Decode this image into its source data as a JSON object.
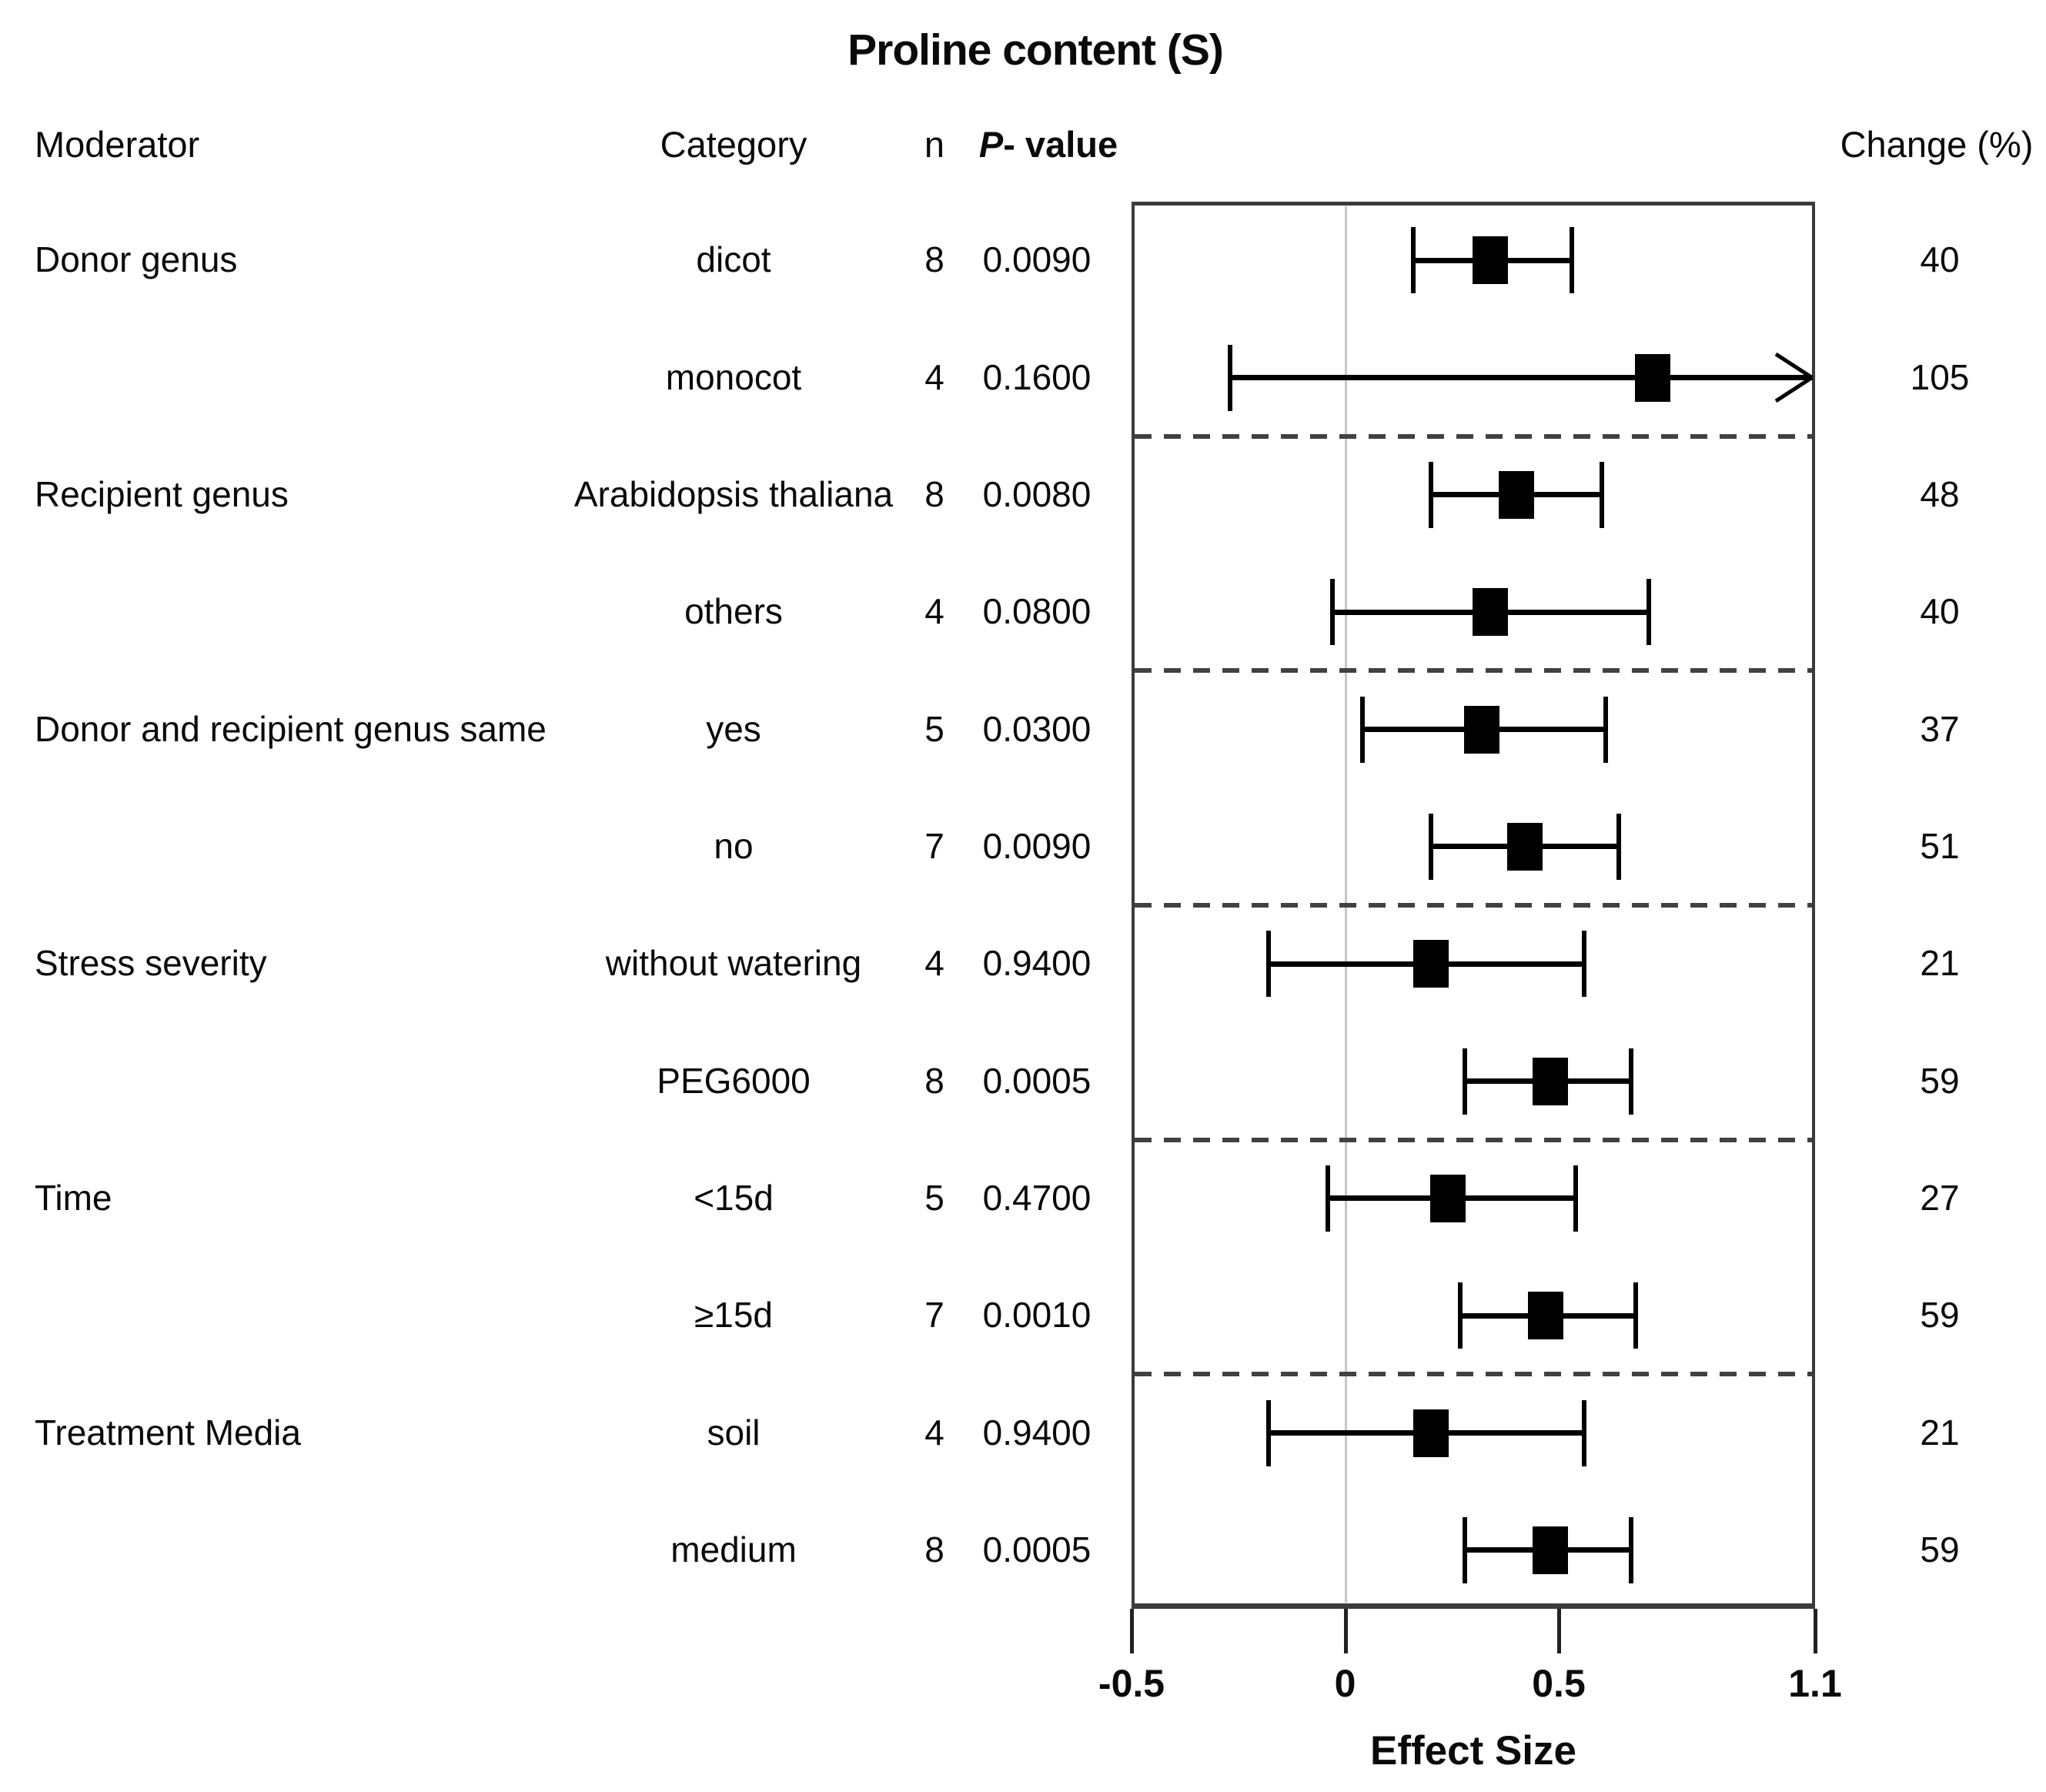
{
  "title": "Proline content (S)",
  "table": {
    "headers": {
      "moderator": "Moderator",
      "category": "Category",
      "n": "n",
      "p_value_italic": "P",
      "p_value_rest": "- value",
      "change": "Change (%)"
    }
  },
  "axis": {
    "label": "Effect Size",
    "ticks": [
      {
        "v": -0.5,
        "label": "-0.5"
      },
      {
        "v": 0,
        "label": "0"
      },
      {
        "v": 0.5,
        "label": "0.5"
      },
      {
        "v": 1.1,
        "label": "1.1"
      }
    ]
  },
  "colors": {
    "background": "#ffffff",
    "text": "#0a0a0a",
    "marker": "#000000",
    "plot_border": "#3b3b3b",
    "zero_line": "#c6c6c6",
    "separator": "#414141"
  },
  "chart_data": {
    "type": "scatter",
    "variant": "forest_plot",
    "title": "Proline content (S)",
    "xlabel": "Effect Size",
    "xlim": [
      -0.5,
      1.1
    ],
    "xticks": [
      -0.5,
      0,
      0.5,
      1.1
    ],
    "reference_line_x": 0,
    "grid": false,
    "separators_after_row_indexes": [
      1,
      3,
      5,
      7,
      9
    ],
    "rows": [
      {
        "moderator": "Donor genus",
        "category": "dicot",
        "n": 8,
        "p_value": "0.0090",
        "effect": 0.34,
        "ci_low": 0.16,
        "ci_high": 0.53,
        "ci_high_clipped": false,
        "change_pct": 40
      },
      {
        "moderator": "",
        "category": "monocot",
        "n": 4,
        "p_value": "0.1600",
        "effect": 0.72,
        "ci_low": -0.27,
        "ci_high": 1.1,
        "ci_high_clipped": true,
        "change_pct": 105
      },
      {
        "moderator": "Recipient genus",
        "category": "Arabidopsis thaliana",
        "n": 8,
        "p_value": "0.0080",
        "effect": 0.4,
        "ci_low": 0.2,
        "ci_high": 0.6,
        "ci_high_clipped": false,
        "change_pct": 48
      },
      {
        "moderator": "",
        "category": "others",
        "n": 4,
        "p_value": "0.0800",
        "effect": 0.34,
        "ci_low": -0.03,
        "ci_high": 0.71,
        "ci_high_clipped": false,
        "change_pct": 40
      },
      {
        "moderator": "Donor and recipient genus same",
        "category": "yes",
        "n": 5,
        "p_value": "0.0300",
        "effect": 0.32,
        "ci_low": 0.04,
        "ci_high": 0.61,
        "ci_high_clipped": false,
        "change_pct": 37
      },
      {
        "moderator": "",
        "category": "no",
        "n": 7,
        "p_value": "0.0090",
        "effect": 0.42,
        "ci_low": 0.2,
        "ci_high": 0.64,
        "ci_high_clipped": false,
        "change_pct": 51
      },
      {
        "moderator": "Stress severity",
        "category": "without watering",
        "n": 4,
        "p_value": "0.9400",
        "effect": 0.2,
        "ci_low": -0.18,
        "ci_high": 0.56,
        "ci_high_clipped": false,
        "change_pct": 21
      },
      {
        "moderator": "",
        "category": "PEG6000",
        "n": 8,
        "p_value": "0.0005",
        "effect": 0.48,
        "ci_low": 0.28,
        "ci_high": 0.67,
        "ci_high_clipped": false,
        "change_pct": 59
      },
      {
        "moderator": "Time",
        "category": "<15d",
        "n": 5,
        "p_value": "0.4700",
        "effect": 0.24,
        "ci_low": -0.04,
        "ci_high": 0.54,
        "ci_high_clipped": false,
        "change_pct": 27
      },
      {
        "moderator": "",
        "category": "≥15d",
        "n": 7,
        "p_value": "0.0010",
        "effect": 0.47,
        "ci_low": 0.27,
        "ci_high": 0.68,
        "ci_high_clipped": false,
        "change_pct": 59
      },
      {
        "moderator": "Treatment Media",
        "category": "soil",
        "n": 4,
        "p_value": "0.9400",
        "effect": 0.2,
        "ci_low": -0.18,
        "ci_high": 0.56,
        "ci_high_clipped": false,
        "change_pct": 21
      },
      {
        "moderator": "",
        "category": "medium",
        "n": 8,
        "p_value": "0.0005",
        "effect": 0.48,
        "ci_low": 0.28,
        "ci_high": 0.67,
        "ci_high_clipped": false,
        "change_pct": 59
      }
    ]
  }
}
